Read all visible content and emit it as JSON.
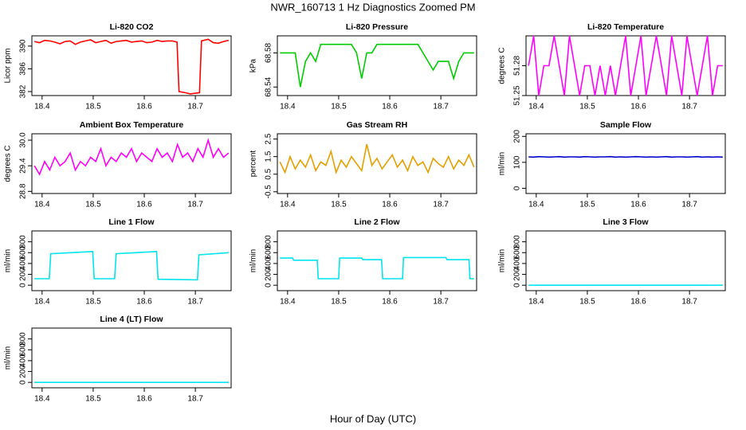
{
  "title": "NWR_160713  1 Hz Diagnostics Zoomed PM",
  "xlabel": "Hour of Day (UTC)",
  "chart_data": [
    {
      "type": "line",
      "title": "Li-820 CO2",
      "ylabel": "Licor ppm",
      "xlim": [
        18.38,
        18.77
      ],
      "xticks": [
        18.4,
        18.5,
        18.6,
        18.7
      ],
      "ylim": [
        381.3,
        391.8
      ],
      "yticks": [
        382,
        386,
        390
      ],
      "x": [
        18.385,
        18.395,
        18.405,
        18.415,
        18.425,
        18.435,
        18.445,
        18.455,
        18.465,
        18.475,
        18.485,
        18.495,
        18.505,
        18.515,
        18.525,
        18.535,
        18.545,
        18.555,
        18.565,
        18.575,
        18.585,
        18.595,
        18.605,
        18.615,
        18.625,
        18.635,
        18.645,
        18.655,
        18.664,
        18.668,
        18.68,
        18.69,
        18.7,
        18.708,
        18.712,
        18.725,
        18.735,
        18.745,
        18.755,
        18.765
      ],
      "series": [
        {
          "color": "#ff0000",
          "values": [
            390.8,
            390.6,
            391.0,
            390.9,
            390.7,
            390.4,
            390.8,
            390.9,
            390.3,
            390.7,
            390.9,
            391.1,
            390.6,
            390.8,
            391.0,
            390.5,
            390.8,
            390.9,
            391.0,
            390.7,
            390.8,
            390.9,
            390.6,
            390.7,
            391.0,
            390.8,
            390.9,
            390.9,
            390.7,
            382.0,
            381.8,
            381.6,
            381.7,
            381.8,
            390.9,
            391.2,
            390.6,
            390.5,
            390.8,
            391.0
          ]
        }
      ]
    },
    {
      "type": "line",
      "title": "Li-820 Pressure",
      "ylabel": "kPa",
      "xlim": [
        18.38,
        18.77
      ],
      "xticks": [
        18.4,
        18.5,
        18.6,
        18.7
      ],
      "ylim": [
        68.53,
        68.6
      ],
      "yticks": [
        68.54,
        68.58
      ],
      "x": [
        18.385,
        18.395,
        18.405,
        18.415,
        18.425,
        18.435,
        18.445,
        18.455,
        18.465,
        18.475,
        18.485,
        18.495,
        18.505,
        18.515,
        18.525,
        18.535,
        18.545,
        18.555,
        18.565,
        18.575,
        18.585,
        18.595,
        18.605,
        18.615,
        18.625,
        18.635,
        18.645,
        18.655,
        18.665,
        18.675,
        18.685,
        18.695,
        18.705,
        18.715,
        18.725,
        18.735,
        18.745,
        18.755,
        18.765
      ],
      "series": [
        {
          "color": "#00cc00",
          "values": [
            68.58,
            68.58,
            68.58,
            68.58,
            68.54,
            68.57,
            68.58,
            68.57,
            68.59,
            68.59,
            68.59,
            68.59,
            68.59,
            68.59,
            68.59,
            68.58,
            68.55,
            68.58,
            68.58,
            68.59,
            68.59,
            68.59,
            68.59,
            68.59,
            68.59,
            68.59,
            68.59,
            68.59,
            68.58,
            68.57,
            68.56,
            68.57,
            68.57,
            68.57,
            68.55,
            68.57,
            68.58,
            68.58,
            68.58
          ]
        }
      ]
    },
    {
      "type": "line",
      "title": "Li-820 Temperature",
      "ylabel": "degrees C",
      "xlim": [
        18.38,
        18.77
      ],
      "xticks": [
        18.4,
        18.5,
        18.6,
        18.7
      ],
      "ylim": [
        51.25,
        51.31
      ],
      "yticks": [
        51.25,
        51.28
      ],
      "x": [
        18.385,
        18.395,
        18.405,
        18.415,
        18.425,
        18.435,
        18.445,
        18.455,
        18.465,
        18.475,
        18.485,
        18.495,
        18.505,
        18.515,
        18.525,
        18.535,
        18.545,
        18.555,
        18.565,
        18.575,
        18.585,
        18.595,
        18.605,
        18.615,
        18.625,
        18.635,
        18.645,
        18.655,
        18.665,
        18.675,
        18.685,
        18.695,
        18.705,
        18.715,
        18.725,
        18.735,
        18.745,
        18.755,
        18.765
      ],
      "series": [
        {
          "color": "#ff00ff",
          "values": [
            51.28,
            51.31,
            51.25,
            51.28,
            51.28,
            51.31,
            51.28,
            51.25,
            51.31,
            51.28,
            51.25,
            51.28,
            51.28,
            51.25,
            51.28,
            51.25,
            51.28,
            51.25,
            51.28,
            51.31,
            51.25,
            51.28,
            51.31,
            51.25,
            51.28,
            51.31,
            51.28,
            51.25,
            51.31,
            51.28,
            51.25,
            51.31,
            51.28,
            51.25,
            51.28,
            51.31,
            51.25,
            51.28,
            51.28
          ]
        }
      ]
    },
    {
      "type": "line",
      "title": "Ambient Box Temperature",
      "ylabel": "degrees C",
      "xlim": [
        18.38,
        18.77
      ],
      "xticks": [
        18.4,
        18.5,
        18.6,
        18.7
      ],
      "ylim": [
        28.75,
        30.15
      ],
      "yticks": [
        28.8,
        29.4,
        {
          "value": 30,
          "label": "30.0"
        }
      ],
      "x": [
        18.385,
        18.395,
        18.405,
        18.415,
        18.425,
        18.435,
        18.445,
        18.455,
        18.465,
        18.475,
        18.485,
        18.495,
        18.505,
        18.515,
        18.525,
        18.535,
        18.545,
        18.555,
        18.565,
        18.575,
        18.585,
        18.595,
        18.605,
        18.615,
        18.625,
        18.635,
        18.645,
        18.655,
        18.665,
        18.675,
        18.685,
        18.695,
        18.705,
        18.715,
        18.725,
        18.735,
        18.745,
        18.755,
        18.765
      ],
      "series": [
        {
          "color": "#ff00ff",
          "values": [
            29.4,
            29.2,
            29.5,
            29.3,
            29.6,
            29.4,
            29.5,
            29.7,
            29.3,
            29.5,
            29.4,
            29.6,
            29.5,
            29.8,
            29.4,
            29.6,
            29.5,
            29.7,
            29.6,
            29.8,
            29.5,
            29.7,
            29.6,
            29.5,
            29.8,
            29.6,
            29.7,
            29.5,
            29.9,
            29.6,
            29.7,
            29.5,
            29.8,
            29.6,
            30.0,
            29.6,
            29.8,
            29.6,
            29.7
          ]
        }
      ]
    },
    {
      "type": "line",
      "title": "Gas Stream RH",
      "ylabel": "percent",
      "xlim": [
        18.38,
        18.77
      ],
      "xticks": [
        18.4,
        18.5,
        18.6,
        18.7
      ],
      "ylim": [
        -0.6,
        2.8
      ],
      "yticks": [
        -0.5,
        0.5,
        1.5,
        2.5
      ],
      "x": [
        18.385,
        18.395,
        18.405,
        18.415,
        18.425,
        18.435,
        18.445,
        18.455,
        18.465,
        18.475,
        18.485,
        18.495,
        18.505,
        18.515,
        18.525,
        18.535,
        18.545,
        18.555,
        18.565,
        18.575,
        18.585,
        18.595,
        18.605,
        18.615,
        18.625,
        18.635,
        18.645,
        18.655,
        18.665,
        18.675,
        18.685,
        18.695,
        18.705,
        18.715,
        18.725,
        18.735,
        18.745,
        18.755,
        18.765
      ],
      "series": [
        {
          "color": "#e69f00",
          "values": [
            1.2,
            0.6,
            1.5,
            0.8,
            1.3,
            0.9,
            1.6,
            0.7,
            1.2,
            1.0,
            1.8,
            0.6,
            1.3,
            0.9,
            1.5,
            1.1,
            0.7,
            2.2,
            1.0,
            1.4,
            0.8,
            1.2,
            1.6,
            0.9,
            1.3,
            0.7,
            1.5,
            1.0,
            1.2,
            0.6,
            1.4,
            1.1,
            0.9,
            1.5,
            0.8,
            1.3,
            1.0,
            1.6,
            0.9
          ]
        }
      ]
    },
    {
      "type": "line",
      "title": "Sample Flow",
      "ylabel": "ml/min",
      "xlim": [
        18.38,
        18.77
      ],
      "xticks": [
        18.4,
        18.5,
        18.6,
        18.7
      ],
      "ylim": [
        -20,
        210
      ],
      "yticks": [
        0,
        100,
        200
      ],
      "x": [
        18.385,
        18.395,
        18.405,
        18.415,
        18.425,
        18.435,
        18.445,
        18.455,
        18.465,
        18.475,
        18.485,
        18.495,
        18.505,
        18.515,
        18.525,
        18.535,
        18.545,
        18.555,
        18.565,
        18.575,
        18.585,
        18.595,
        18.605,
        18.615,
        18.625,
        18.635,
        18.645,
        18.655,
        18.665,
        18.675,
        18.685,
        18.695,
        18.705,
        18.715,
        18.725,
        18.735,
        18.745,
        18.755,
        18.765
      ],
      "series": [
        {
          "color": "#0000cc",
          "values": [
            121,
            120,
            122,
            121,
            120,
            121,
            122,
            120,
            121,
            121,
            120,
            122,
            121,
            120,
            121,
            121,
            122,
            120,
            121,
            120,
            121,
            122,
            121,
            120,
            121,
            120,
            121,
            122,
            120,
            121,
            121,
            120,
            121,
            122,
            120,
            121,
            120,
            121,
            120
          ]
        }
      ]
    },
    {
      "type": "line",
      "title": "Line 1 Flow",
      "ylabel": "ml/min",
      "xlim": [
        18.38,
        18.77
      ],
      "xticks": [
        18.4,
        18.5,
        18.6,
        18.7
      ],
      "ylim": [
        -100,
        1000
      ],
      "yticks": [
        0,
        200,
        400,
        600,
        800
      ],
      "x": [
        18.385,
        18.414,
        18.417,
        18.499,
        18.502,
        18.542,
        18.545,
        18.624,
        18.627,
        18.704,
        18.707,
        18.765
      ],
      "series": [
        {
          "color": "#00e5ee",
          "values": [
            120,
            120,
            580,
            620,
            120,
            120,
            580,
            620,
            110,
            100,
            560,
            600
          ]
        }
      ]
    },
    {
      "type": "line",
      "title": "Line 2 Flow",
      "ylabel": "ml/min",
      "xlim": [
        18.38,
        18.77
      ],
      "xticks": [
        18.4,
        18.5,
        18.6,
        18.7
      ],
      "ylim": [
        -100,
        1000
      ],
      "yticks": [
        0,
        200,
        400,
        600,
        800
      ],
      "x": [
        18.385,
        18.41,
        18.412,
        18.458,
        18.46,
        18.5,
        18.502,
        18.545,
        18.547,
        18.584,
        18.586,
        18.625,
        18.627,
        18.71,
        18.712,
        18.755,
        18.757,
        18.765
      ],
      "series": [
        {
          "color": "#00e5ee",
          "values": [
            500,
            500,
            460,
            460,
            120,
            120,
            500,
            500,
            470,
            470,
            120,
            120,
            510,
            510,
            470,
            470,
            120,
            120
          ]
        }
      ]
    },
    {
      "type": "line",
      "title": "Line 3 Flow",
      "ylabel": "ml/min",
      "xlim": [
        18.38,
        18.77
      ],
      "xticks": [
        18.4,
        18.5,
        18.6,
        18.7
      ],
      "ylim": [
        -100,
        1000
      ],
      "yticks": [
        0,
        200,
        400,
        600,
        800
      ],
      "x": [
        18.385,
        18.765
      ],
      "series": [
        {
          "color": "#00e5ee",
          "values": [
            0,
            0
          ]
        }
      ]
    },
    {
      "type": "line",
      "title": "Line 4 (LT) Flow",
      "ylabel": "ml/min",
      "xlim": [
        18.38,
        18.77
      ],
      "xticks": [
        18.4,
        18.5,
        18.6,
        18.7
      ],
      "ylim": [
        -100,
        1000
      ],
      "yticks": [
        0,
        200,
        400,
        600,
        800
      ],
      "x": [
        18.385,
        18.765
      ],
      "series": [
        {
          "color": "#00e5ee",
          "values": [
            0,
            0
          ]
        }
      ]
    }
  ]
}
